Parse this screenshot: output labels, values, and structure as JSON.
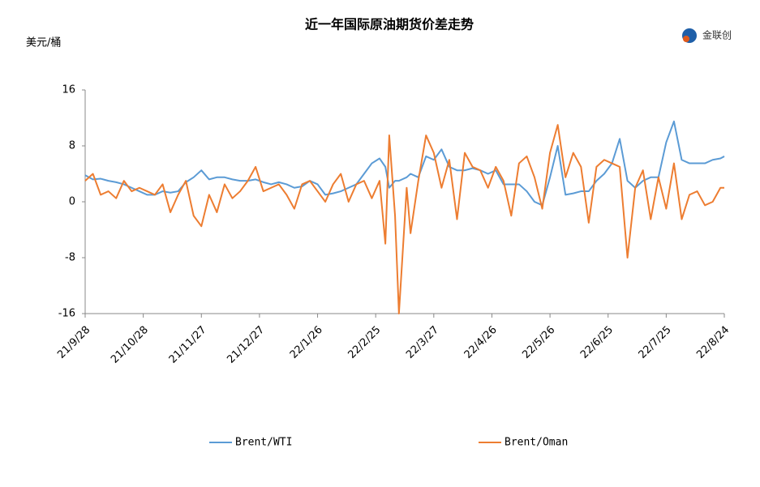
{
  "logo": "金联创",
  "chart_data": {
    "type": "line",
    "title": "近一年国际原油期货价差走势",
    "y_label": "美元/桶",
    "x": [
      "21/9/28",
      "21/10/2",
      "21/10/6",
      "21/10/10",
      "21/10/14",
      "21/10/18",
      "21/10/22",
      "21/10/26",
      "21/10/30",
      "21/11/3",
      "21/11/7",
      "21/11/11",
      "21/11/15",
      "21/11/19",
      "21/11/23",
      "21/11/27",
      "21/12/1",
      "21/12/5",
      "21/12/9",
      "21/12/13",
      "21/12/17",
      "21/12/21",
      "21/12/25",
      "21/12/29",
      "22/1/2",
      "22/1/6",
      "22/1/10",
      "22/1/14",
      "22/1/18",
      "22/1/22",
      "22/1/26",
      "22/1/30",
      "22/2/3",
      "22/2/7",
      "22/2/11",
      "22/2/15",
      "22/2/19",
      "22/2/23",
      "22/2/27",
      "22/3/2",
      "22/3/4",
      "22/3/7",
      "22/3/9",
      "22/3/13",
      "22/3/15",
      "22/3/19",
      "22/3/23",
      "22/3/27",
      "22/3/31",
      "22/4/4",
      "22/4/8",
      "22/4/12",
      "22/4/16",
      "22/4/20",
      "22/4/24",
      "22/4/28",
      "22/5/2",
      "22/5/6",
      "22/5/10",
      "22/5/14",
      "22/5/18",
      "22/5/22",
      "22/5/26",
      "22/5/30",
      "22/6/3",
      "22/6/7",
      "22/6/11",
      "22/6/15",
      "22/6/19",
      "22/6/23",
      "22/6/27",
      "22/7/1",
      "22/7/5",
      "22/7/9",
      "22/7/13",
      "22/7/17",
      "22/7/21",
      "22/7/25",
      "22/7/29",
      "22/8/2",
      "22/8/6",
      "22/8/10",
      "22/8/14",
      "22/8/18",
      "22/8/22",
      "22/8/24"
    ],
    "series": [
      {
        "name": "Brent/WTI",
        "color": "#5b9bd5",
        "values": [
          3.8,
          3.2,
          3.3,
          3,
          2.8,
          2.5,
          2,
          1.5,
          1,
          1,
          1.5,
          1.3,
          1.5,
          2.8,
          3.5,
          4.5,
          3.2,
          3.5,
          3.5,
          3.2,
          3,
          3,
          3.2,
          2.8,
          2.5,
          2.8,
          2.5,
          2,
          2.2,
          3,
          2.5,
          1,
          1.2,
          1.5,
          2,
          2.5,
          4,
          5.5,
          6.2,
          5,
          2,
          3,
          3,
          3.5,
          4,
          3.5,
          6.5,
          6,
          7.5,
          5,
          4.5,
          4.5,
          4.8,
          4.5,
          4,
          4.5,
          2.5,
          2.5,
          2.5,
          1.5,
          0,
          -0.5,
          3.5,
          8,
          1,
          1.2,
          1.5,
          1.5,
          3,
          4,
          5.5,
          9,
          3,
          2,
          3,
          3.5,
          3.5,
          8.5,
          11.5,
          6,
          5.5,
          5.5,
          5.5,
          6,
          6.2,
          6.5
        ]
      },
      {
        "name": "Brent/Oman",
        "color": "#ed7d31",
        "values": [
          3,
          4,
          1,
          1.5,
          0.5,
          3,
          1.5,
          2,
          1.5,
          1,
          2.5,
          -1.5,
          1,
          3,
          -2,
          -3.5,
          1,
          -1.5,
          2.5,
          0.5,
          1.5,
          3,
          5,
          1.5,
          2,
          2.5,
          1,
          -1,
          2.5,
          3,
          1.5,
          0,
          2.5,
          4,
          0,
          2.5,
          3,
          0.5,
          3,
          -6,
          9.5,
          -2,
          -16,
          2,
          -4.5,
          3,
          9.5,
          7,
          2,
          6,
          -2.5,
          7,
          5,
          4.5,
          2,
          5,
          3,
          -2,
          5.5,
          6.5,
          3.5,
          -1,
          7,
          11,
          3.5,
          7,
          5,
          -3,
          5,
          6,
          5.5,
          5,
          -8,
          2,
          4.5,
          -2.5,
          3.5,
          -1,
          5.5,
          -2.5,
          1,
          1.5,
          -0.5,
          0,
          2,
          2
        ]
      }
    ],
    "xlim": [
      "21/9/28",
      "22/8/24"
    ],
    "xticks": [
      "21/9/28",
      "21/10/28",
      "21/11/27",
      "21/12/27",
      "22/1/26",
      "22/2/25",
      "22/3/27",
      "22/4/26",
      "22/5/26",
      "22/6/25",
      "22/7/25",
      "22/8/24"
    ],
    "ylim": [
      -16,
      16
    ],
    "yticks": [
      -16,
      -8,
      0,
      8,
      16
    ],
    "grid": false,
    "legend": "bottom"
  }
}
